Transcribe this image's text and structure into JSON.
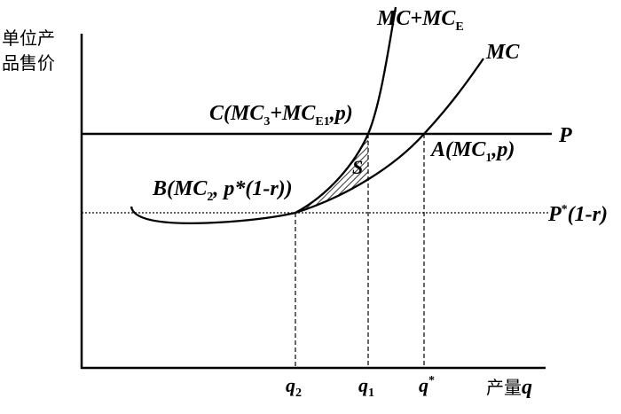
{
  "axes": {
    "y_label": [
      "单位产",
      "品售价"
    ],
    "x_label": [
      "产量",
      "q"
    ]
  },
  "curves": {
    "mc_plus_mce": [
      "MC+MC",
      "E"
    ],
    "mc": "MC"
  },
  "lines": {
    "price": "P",
    "discounted_price": [
      "P",
      "*",
      "(1-r)"
    ]
  },
  "points": {
    "c": [
      "C(MC",
      "3",
      "+MC",
      "E1",
      ",p)"
    ],
    "a": [
      "A(MC",
      "1",
      ",p)"
    ],
    "b": [
      "B(MC",
      "2",
      ", p*(1-r))"
    ]
  },
  "area": "S",
  "ticks": {
    "q2": [
      "q",
      "2"
    ],
    "q1": [
      "q",
      "1"
    ],
    "q_star": [
      "q",
      "*"
    ]
  }
}
